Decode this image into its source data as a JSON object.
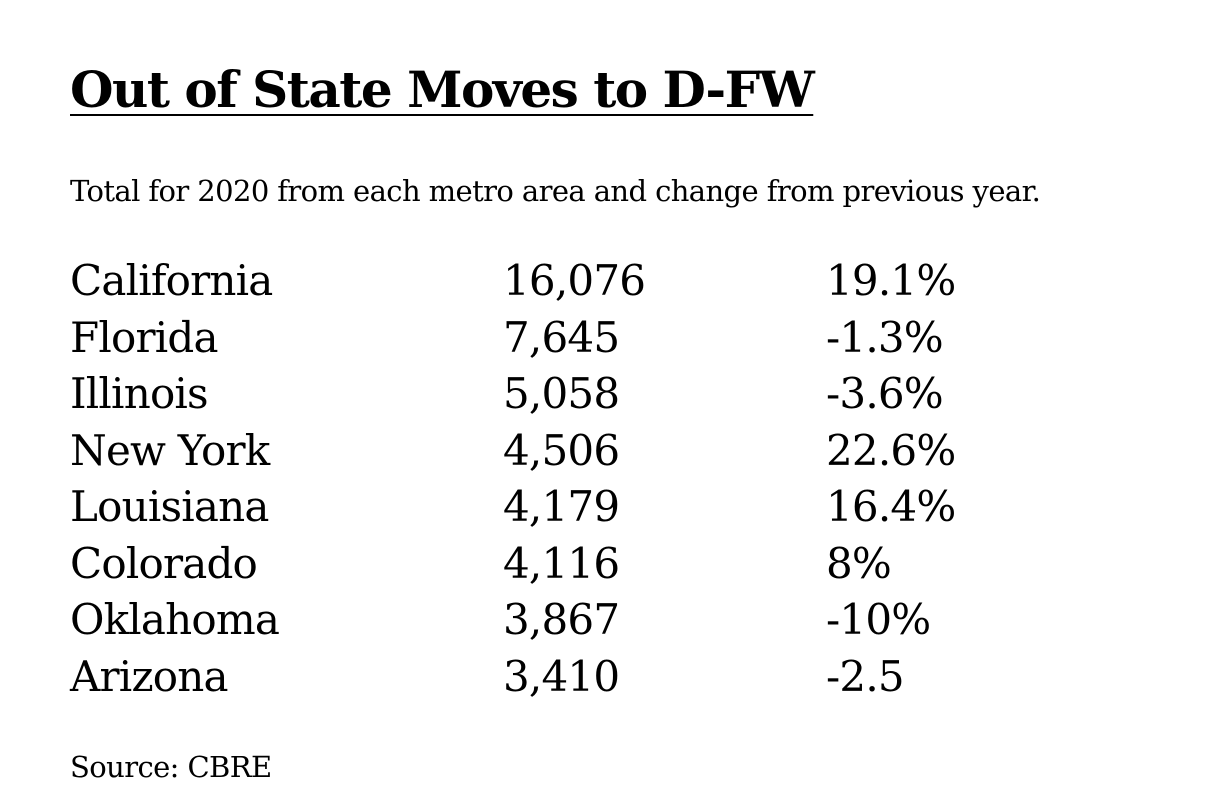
{
  "title": "Out of State Moves to D-FW",
  "subtitle": "Total for 2020 from each metro area and change from previous year.",
  "rows": [
    {
      "state": "California",
      "moves": "16,076",
      "change": "19.1%"
    },
    {
      "state": "Florida",
      "moves": "7,645",
      "change": "-1.3%"
    },
    {
      "state": "Illinois",
      "moves": "5,058",
      "change": "-3.6%"
    },
    {
      "state": "New York",
      "moves": "4,506",
      "change": "22.6%"
    },
    {
      "state": "Louisiana",
      "moves": "4,179",
      "change": "16.4%"
    },
    {
      "state": "Colorado",
      "moves": "4,116",
      "change": "8%"
    },
    {
      "state": "Oklahoma",
      "moves": "3,867",
      "change": "-10%"
    },
    {
      "state": "Arizona",
      "moves": "3,410",
      "change": "-2.5"
    }
  ],
  "source": "Source: CBRE"
}
